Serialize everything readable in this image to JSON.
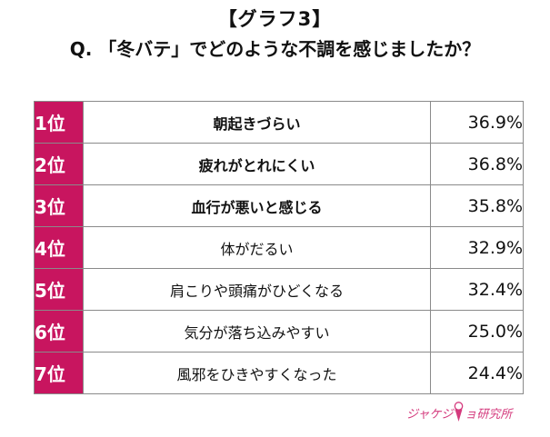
{
  "header": {
    "graph_label": "【グラフ3】",
    "question": "Q. 「冬バテ」でどのような不調を感じましたか？"
  },
  "chart_data": {
    "type": "table",
    "title": "【グラフ3】",
    "subtitle": "Q. 「冬バテ」でどのような不調を感じましたか？",
    "columns": [
      "rank",
      "item",
      "percent"
    ],
    "rows": [
      {
        "rank": "1位",
        "label": "朝起きづらい",
        "value": "36.9%",
        "percent": 36.9,
        "bold": true
      },
      {
        "rank": "2位",
        "label": "疲れがとれにくい",
        "value": "36.8%",
        "percent": 36.8,
        "bold": true
      },
      {
        "rank": "3位",
        "label": "血行が悪いと感じる",
        "value": "35.8%",
        "percent": 35.8,
        "bold": true
      },
      {
        "rank": "4位",
        "label": "体がだるい",
        "value": "32.9%",
        "percent": 32.9,
        "bold": false
      },
      {
        "rank": "5位",
        "label": "肩こりや頭痛がひどくなる",
        "value": "32.4%",
        "percent": 32.4,
        "bold": false
      },
      {
        "rank": "6位",
        "label": "気分が落ち込みやすい",
        "value": "25.0%",
        "percent": 25.0,
        "bold": false
      },
      {
        "rank": "7位",
        "label": "風邪をひきやすくなった",
        "value": "24.4%",
        "percent": 24.4,
        "bold": false
      }
    ]
  },
  "colors": {
    "rank_background": "#c8155f",
    "rank_text": "#ffffff",
    "border": "#8a8a8a",
    "logo": "#d43a7d"
  },
  "logo": {
    "text": "ジャケジョ研究所",
    "text_before": "ジャケジ",
    "text_after": "ョ研究所",
    "icon": "ice-cream-cone-icon"
  }
}
